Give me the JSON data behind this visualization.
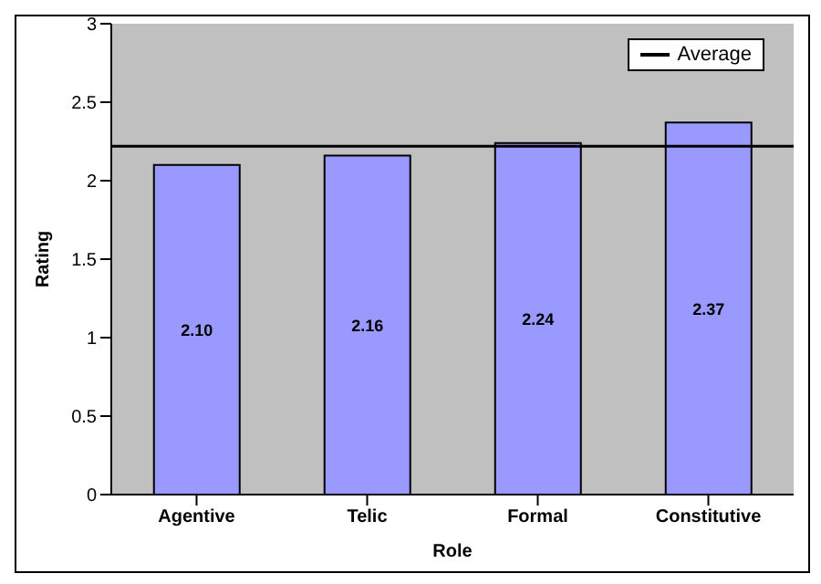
{
  "chart_data": {
    "type": "bar",
    "xlabel": "Role",
    "ylabel": "Rating",
    "categories": [
      "Agentive",
      "Telic",
      "Formal",
      "Constitutive"
    ],
    "values": [
      2.1,
      2.16,
      2.24,
      2.37
    ],
    "color": "#9999ff",
    "value_labels": [
      "2.10",
      "2.16",
      "2.24",
      "2.37"
    ],
    "ylim": [
      0,
      3
    ],
    "yticks": [
      0,
      0.5,
      1,
      1.5,
      2,
      2.5,
      3
    ],
    "grid": false,
    "ref_lines": [
      {
        "axis": "y",
        "value": 2.22,
        "label": "Average",
        "color": "#000000"
      }
    ],
    "legend": "top right"
  }
}
